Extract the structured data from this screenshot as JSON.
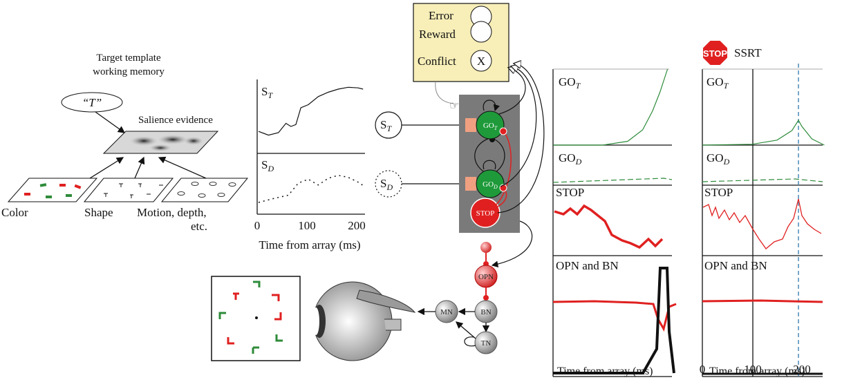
{
  "colors": {
    "go": "#2e8b3a",
    "stop": "#e02020",
    "black": "#111111",
    "monitor_box": "#f7eeb8",
    "circuit_bg": "#7a7a7a",
    "ssrt_line": "#4a8ab8"
  },
  "left": {
    "template_title": [
      "Target template",
      "working memory"
    ],
    "template_value": "“T”",
    "salience_label": "Salience evidence",
    "maps": [
      "Color",
      "Shape",
      "Motion, depth,",
      "etc."
    ]
  },
  "inputs": {
    "st_label": "S_T",
    "sd_label": "S_D",
    "xticks": [
      "0",
      "100",
      "200"
    ],
    "xlabel": "Time from array (ms)"
  },
  "monitor": {
    "items": [
      "Error",
      "Reward",
      "Conflict"
    ],
    "conflict_symbol": "X"
  },
  "circuit": {
    "go_t": "GO_T",
    "go_d": "GO_D",
    "stop": "STOP",
    "opn": "OPN",
    "bn": "BN",
    "mn": "MN",
    "tn": "TN",
    "sd_circle": "S_D",
    "st_circle": "S_T"
  },
  "results": {
    "stop_sign": "STOP",
    "ssrt": "SSRT",
    "panel_labels": {
      "go_t": "GO_T",
      "go_d": "GO_D",
      "stop": "STOP",
      "opn_bn": "OPN and BN"
    },
    "xticks": [
      "0",
      "100",
      "200"
    ],
    "xlabel": "Time from array (ms)"
  },
  "chart_data": [
    {
      "type": "line",
      "ylabel": "S_T",
      "xticks": [
        "0",
        "100",
        "200"
      ],
      "xlabel": "Time from array (ms)",
      "xlim": [
        0,
        220
      ],
      "series": [
        {
          "values": [
            [
              0,
              0.22
            ],
            [
              20,
              0.16
            ],
            [
              40,
              0.2
            ],
            [
              55,
              0.35
            ],
            [
              65,
              0.3
            ],
            [
              75,
              0.33
            ],
            [
              85,
              0.6
            ],
            [
              100,
              0.65
            ],
            [
              120,
              0.78
            ],
            [
              140,
              0.85
            ],
            [
              160,
              0.9
            ],
            [
              180,
              0.93
            ],
            [
              200,
              0.92
            ],
            [
              210,
              0.9
            ]
          ]
        }
      ]
    },
    {
      "type": "line",
      "ylabel": "S_D",
      "xticks": [
        "0",
        "100",
        "200"
      ],
      "xlabel": "Time from array (ms)",
      "xlim": [
        0,
        220
      ],
      "series": [
        {
          "values": [
            [
              0,
              0.1
            ],
            [
              30,
              0.18
            ],
            [
              60,
              0.25
            ],
            [
              80,
              0.5
            ],
            [
              100,
              0.58
            ],
            [
              120,
              0.46
            ],
            [
              140,
              0.6
            ],
            [
              160,
              0.66
            ],
            [
              180,
              0.62
            ],
            [
              200,
              0.52
            ],
            [
              210,
              0.45
            ]
          ]
        }
      ]
    },
    {
      "type": "line",
      "ylabel": "GO_T",
      "xticks": [
        "0",
        "100",
        "200"
      ],
      "xlabel": "Time from array (ms)",
      "series": [
        {
          "values": [
            [
              0,
              0.0
            ],
            [
              100,
              0.0
            ],
            [
              150,
              0.05
            ],
            [
              180,
              0.2
            ],
            [
              200,
              0.45
            ],
            [
              215,
              0.7
            ],
            [
              230,
              1.0
            ]
          ]
        }
      ]
    },
    {
      "type": "line",
      "ylabel": "GO_T",
      "condition": "stop",
      "series": [
        {
          "values": [
            [
              0,
              0.0
            ],
            [
              100,
              0.02
            ],
            [
              150,
              0.12
            ],
            [
              180,
              0.35
            ],
            [
              193,
              0.6
            ],
            [
              200,
              0.45
            ],
            [
              220,
              0.15
            ],
            [
              245,
              0.0
            ]
          ]
        }
      ]
    }
  ]
}
